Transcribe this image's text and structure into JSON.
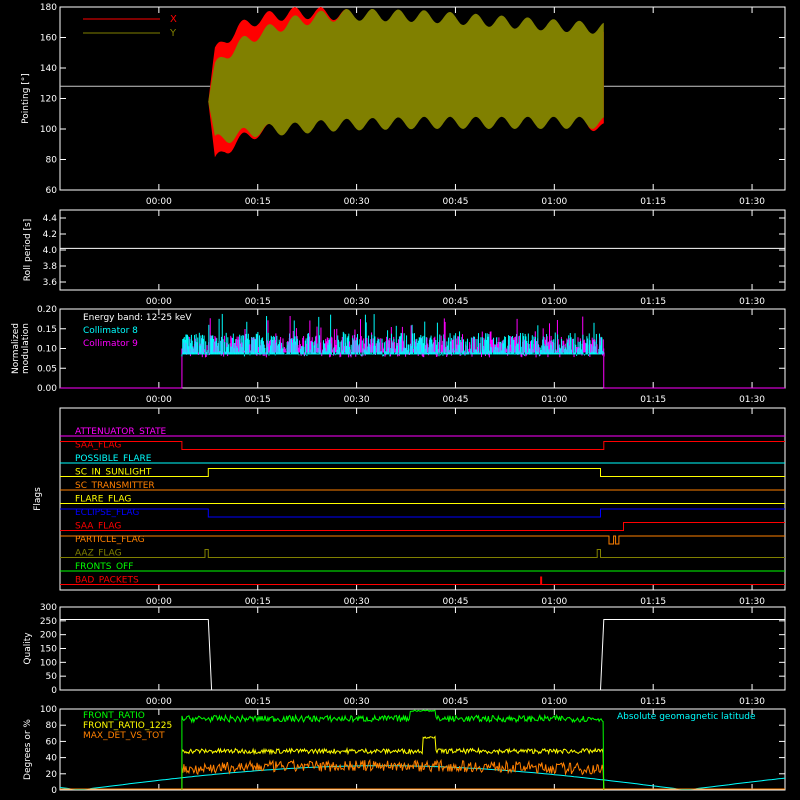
{
  "time_ticks": [
    "00:00",
    "00:15",
    "00:30",
    "00:45",
    "01:00",
    "01:15",
    "01:30"
  ],
  "chart_data": [
    {
      "type": "area",
      "ylabel": "Pointing [°]",
      "ylim": [
        60,
        180
      ],
      "yticks": [
        "60",
        "80",
        "100",
        "120",
        "140",
        "160",
        "180"
      ],
      "legend": [
        "X",
        "Y"
      ],
      "colors": {
        "X": "#ff0000",
        "Y": "#808000"
      },
      "reference_line": 128,
      "x_start_min": 7.5,
      "x_end_min": 67.5,
      "x_envelope": {
        "x": [
          7.5,
          8.5,
          10,
          12,
          15,
          20,
          25,
          30,
          40,
          50,
          60,
          67.5
        ],
        "upper": [
          120,
          150,
          158,
          166,
          172,
          176,
          176,
          174,
          170,
          167,
          163,
          160
        ],
        "lower": [
          120,
          78,
          86,
          92,
          98,
          102,
          108,
          112,
          115,
          115,
          112,
          100
        ]
      },
      "y_envelope": {
        "x": [
          7.5,
          8.5,
          10,
          12,
          15,
          20,
          25,
          30,
          40,
          50,
          60,
          67.5
        ],
        "upper": [
          120,
          140,
          148,
          155,
          162,
          170,
          174,
          175,
          174,
          171,
          168,
          166
        ],
        "lower": [
          120,
          92,
          94,
          96,
          99,
          100,
          102,
          103,
          104,
          104,
          104,
          104
        ]
      }
    },
    {
      "type": "line",
      "ylabel": "Roll period [s]",
      "ylim": [
        3.5,
        4.5
      ],
      "yticks": [
        "3.6",
        "3.8",
        "4.0",
        "4.2",
        "4.4"
      ],
      "values": 4.02,
      "color": "#ffffff"
    },
    {
      "type": "bar",
      "ylabel": "Normalized modulation",
      "ylim": [
        0.0,
        0.2
      ],
      "yticks": [
        "0.00",
        "0.05",
        "0.10",
        "0.15",
        "0.20"
      ],
      "annotation": "Energy band: 12-25 keV",
      "series": [
        {
          "name": "Collimator 8",
          "color": "#00ffff",
          "mean": 0.11
        },
        {
          "name": "Collimator 9",
          "color": "#ff00ff",
          "mean": 0.105
        }
      ],
      "x_start_min": 3.5,
      "x_end_min": 67.5
    },
    {
      "type": "line",
      "ylabel": "Flags",
      "flags": [
        {
          "name": "ATTENUATOR_STATE",
          "color": "#ff00ff",
          "segments": [
            [
              -15,
              95,
              0
            ]
          ]
        },
        {
          "name": "SAA_FLAG",
          "color": "#ff0000",
          "segments": [
            [
              -15,
              3.5,
              1
            ],
            [
              3.5,
              67.5,
              0
            ],
            [
              67.5,
              95,
              1
            ]
          ]
        },
        {
          "name": "POSSIBLE_FLARE",
          "color": "#00ffff",
          "segments": [
            [
              -15,
              95,
              0
            ]
          ]
        },
        {
          "name": "SC_IN_SUNLIGHT",
          "color": "#ffff00",
          "segments": [
            [
              -15,
              7.5,
              0
            ],
            [
              7.5,
              67,
              1
            ],
            [
              67,
              95,
              0
            ]
          ]
        },
        {
          "name": "SC_TRANSMITTER",
          "color": "#ff8000",
          "segments": [
            [
              -15,
              95,
              0
            ]
          ]
        },
        {
          "name": "FLARE_FLAG",
          "color": "#ffff00",
          "segments": [
            [
              -15,
              95,
              0
            ]
          ]
        },
        {
          "name": "ECLIPSE_FLAG",
          "color": "#0000ff",
          "segments": [
            [
              -15,
              7.5,
              1
            ],
            [
              7.5,
              67,
              0
            ],
            [
              67,
              95,
              1
            ]
          ]
        },
        {
          "name": "SAA_FLAG",
          "color": "#ff0000",
          "segments": [
            [
              -15,
              70.5,
              0
            ],
            [
              70.5,
              95,
              1
            ]
          ]
        },
        {
          "name": "PARTICLE_FLAG",
          "color": "#ff8000",
          "segments": [
            [
              -15,
              68.3,
              1
            ],
            [
              68.3,
              69,
              0
            ],
            [
              69,
              69.3,
              1
            ],
            [
              69.3,
              69.8,
              0
            ],
            [
              69.8,
              95,
              1
            ]
          ]
        },
        {
          "name": "AAZ_FLAG",
          "color": "#808000",
          "segments": [
            [
              -15,
              7,
              0
            ],
            [
              7,
              7.5,
              1
            ],
            [
              7.5,
              66.5,
              0
            ],
            [
              66.5,
              67,
              1
            ],
            [
              67,
              95,
              0
            ]
          ]
        },
        {
          "name": "FRONTS_OFF",
          "color": "#00ff00",
          "segments": [
            [
              -15,
              95,
              0
            ]
          ]
        },
        {
          "name": "BAD_PACKETS",
          "color": "#ff0000",
          "segments": [
            [
              -15,
              95,
              0
            ]
          ],
          "spikes": [
            58
          ]
        }
      ]
    },
    {
      "type": "line",
      "ylabel": "Quality",
      "ylim": [
        0,
        300
      ],
      "yticks": [
        "0",
        "50",
        "100",
        "150",
        "200",
        "250",
        "300"
      ],
      "color": "#ffffff",
      "points": {
        "x": [
          -15,
          7.5,
          8,
          67,
          67.5,
          95
        ],
        "y": [
          255,
          255,
          0,
          0,
          255,
          255
        ]
      }
    },
    {
      "type": "line",
      "ylabel": "Degrees or %",
      "ylim": [
        0,
        100
      ],
      "yticks": [
        "0",
        "20",
        "40",
        "60",
        "80",
        "100"
      ],
      "legend_right": "Absolute geomagnetic latitude",
      "series": [
        {
          "name": "FRONT_RATIO",
          "color": "#00ff00",
          "level": 88,
          "noise": 4,
          "bump": [
            38,
            42,
            98
          ]
        },
        {
          "name": "FRONT_RATIO_1225",
          "color": "#ffff00",
          "level": 48,
          "noise": 3,
          "bump": [
            40,
            42,
            65
          ]
        },
        {
          "name": "MAX_DET_VS_TOT",
          "color": "#ff8000",
          "level": 27,
          "noise": 7
        },
        {
          "name": "Absolute geomagnetic latitude",
          "color": "#00ffff"
        }
      ],
      "x_start_min": 3.5,
      "x_end_min": 67.5
    }
  ]
}
